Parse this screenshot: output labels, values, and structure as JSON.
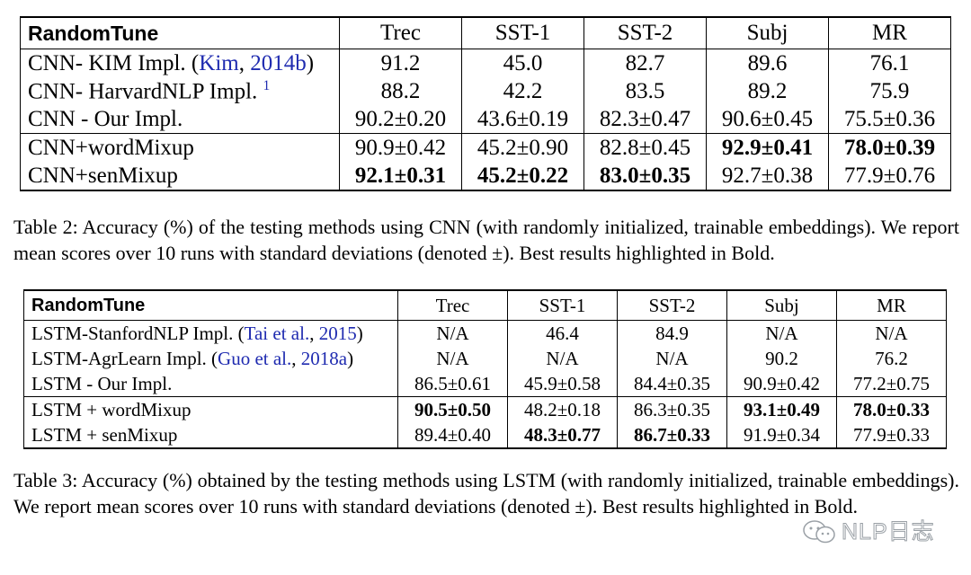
{
  "table2": {
    "header": [
      "RandomTune",
      "Trec",
      "SST-1",
      "SST-2",
      "Subj",
      "MR"
    ],
    "rows": [
      {
        "label": "CNN- KIM Impl. (",
        "cite": "Kim",
        "cite_sep": ", ",
        "cite_year": "2014b",
        "label_end": ")",
        "cells": [
          "91.2",
          "45.0",
          "82.7",
          "89.6",
          "76.1"
        ]
      },
      {
        "label": "CNN- HarvardNLP Impl. ",
        "sup": "1",
        "cells": [
          "88.2",
          "42.2",
          "83.5",
          "89.2",
          "75.9"
        ]
      },
      {
        "label": "CNN - Our Impl.",
        "cells": [
          "90.2±0.20",
          "43.6±0.19",
          "82.3±0.47",
          "90.6±0.45",
          "75.5±0.36"
        ]
      },
      {
        "label": "CNN+wordMixup",
        "cells": [
          "90.9±0.42",
          "45.2±0.90",
          "82.8±0.45",
          "92.9±0.41",
          "78.0±0.39"
        ]
      },
      {
        "label": "CNN+senMixup",
        "cells": [
          "92.1±0.31",
          "45.2±0.22",
          "83.0±0.35",
          "92.7±0.38",
          "77.9±0.76"
        ]
      }
    ],
    "caption": "Table 2: Accuracy (%) of the testing methods using CNN (with randomly initialized, trainable embeddings). We report mean scores over 10 runs with standard deviations (denoted ±). Best results highlighted in Bold."
  },
  "table3": {
    "header": [
      "RandomTune",
      "Trec",
      "SST-1",
      "SST-2",
      "Subj",
      "MR"
    ],
    "rows": [
      {
        "label": "LSTM-StanfordNLP Impl. (",
        "cite": "Tai et al.",
        "cite_sep": ", ",
        "cite_year": "2015",
        "label_end": ")",
        "cells": [
          "N/A",
          "46.4",
          "84.9",
          "N/A",
          "N/A"
        ]
      },
      {
        "label": "LSTM-AgrLearn Impl. (",
        "cite": "Guo et al.",
        "cite_sep": ", ",
        "cite_year": "2018a",
        "label_end": ")",
        "cells": [
          "N/A",
          "N/A",
          "N/A",
          "90.2",
          "76.2"
        ]
      },
      {
        "label": "LSTM - Our Impl.",
        "cells": [
          "86.5±0.61",
          "45.9±0.58",
          "84.4±0.35",
          "90.9±0.42",
          "77.2±0.75"
        ]
      },
      {
        "label": "LSTM + wordMixup",
        "cells": [
          "90.5±0.50",
          "48.2±0.18",
          "86.3±0.35",
          "93.1±0.49",
          "78.0±0.33"
        ]
      },
      {
        "label": "LSTM + senMixup",
        "cells": [
          "89.4±0.40",
          "48.3±0.77",
          "86.7±0.33",
          "91.9±0.34",
          "77.9±0.33"
        ]
      }
    ],
    "caption": "Table 3: Accuracy (%) obtained by the testing methods using LSTM (with randomly initialized, trainable embeddings). We report mean scores over 10 runs with standard deviations (denoted ±). Best results highlighted in Bold."
  },
  "watermark": {
    "text": "NLP日志",
    "icon": "wechat-icon"
  },
  "colors": {
    "citation": "#1f2bb0",
    "text": "#000000"
  }
}
